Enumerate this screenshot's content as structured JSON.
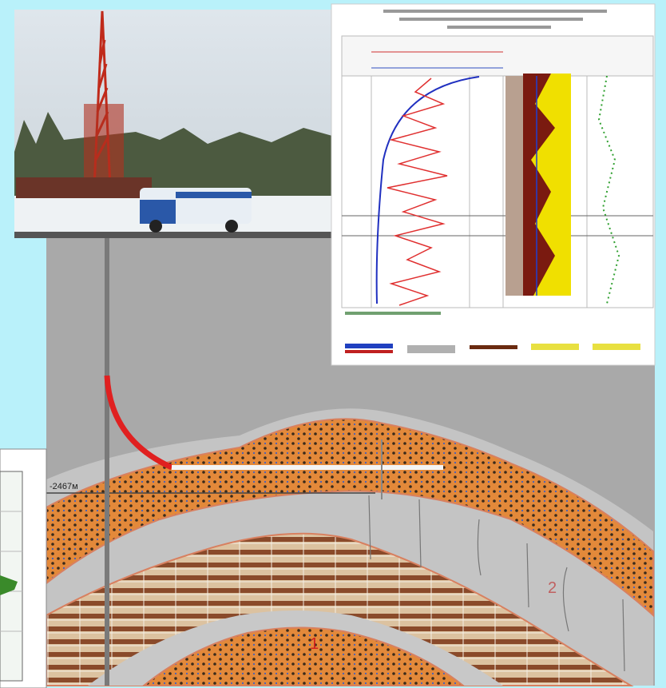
{
  "diagram": {
    "depth_label": "-2467м",
    "layer_labels": [
      "1",
      "2"
    ]
  }
}
